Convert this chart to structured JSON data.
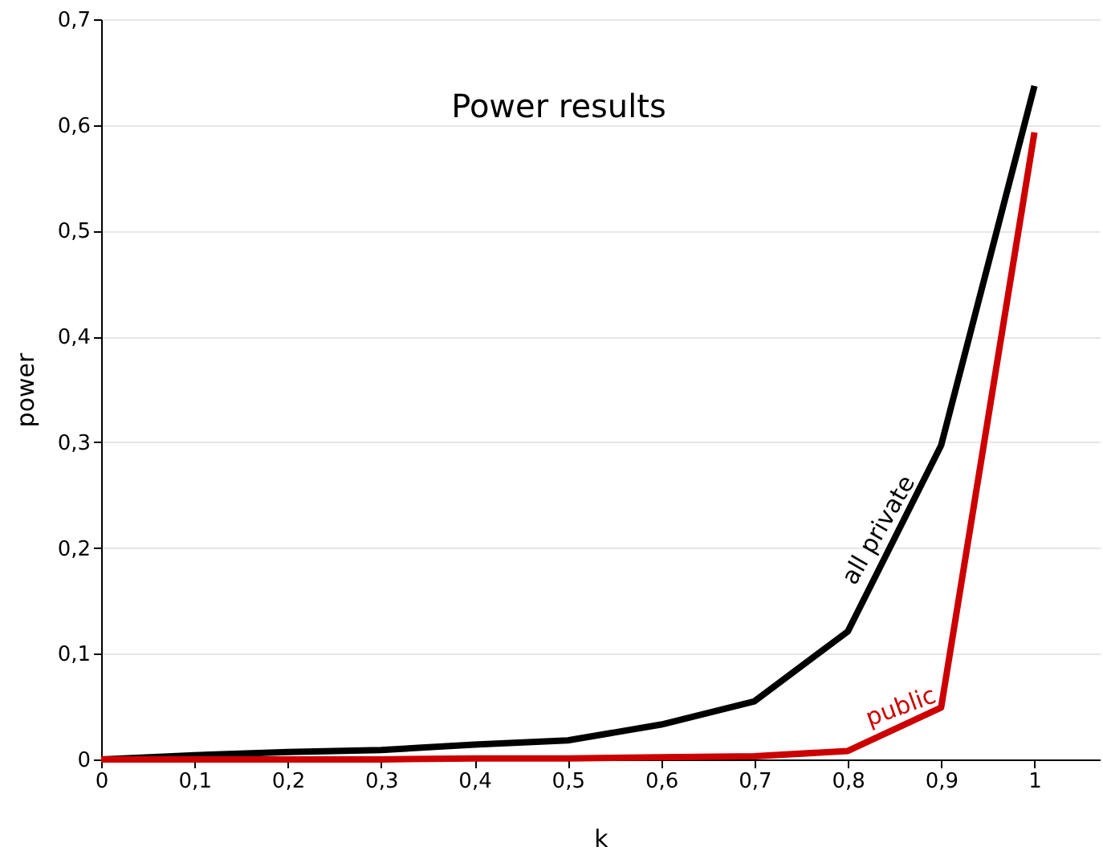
{
  "chart_data": {
    "type": "line",
    "title": "Power results",
    "xlabel": "k",
    "ylabel": "power",
    "x": [
      0,
      0.1,
      0.2,
      0.3,
      0.4,
      0.5,
      0.6,
      0.7,
      0.8,
      0.9,
      1
    ],
    "series": [
      {
        "color": "#000000",
        "values": [
          0,
          0.004,
          0.007,
          0.009,
          0.014,
          0.018,
          0.033,
          0.055,
          0.121,
          0.297,
          0.637
        ]
      },
      {
        "color": "#cc0000",
        "values": [
          0,
          0,
          0,
          0,
          0.001,
          0.001,
          0.002,
          0.003,
          0.008,
          0.049,
          0.593
        ]
      }
    ],
    "annotations": [
      "all private",
      "public"
    ],
    "xlim": [
      0,
      1.07
    ],
    "ylim": [
      0,
      0.7
    ],
    "xticks": [
      0,
      {
        "value": 0.1,
        "label": "0,1"
      },
      {
        "value": 0.2,
        "label": "0,2"
      },
      {
        "value": 0.3,
        "label": "0,3"
      },
      {
        "value": 0.4,
        "label": "0,4"
      },
      {
        "value": 0.5,
        "label": "0,5"
      },
      {
        "value": 0.6,
        "label": "0,6"
      },
      {
        "value": 0.7,
        "label": "0,7"
      },
      {
        "value": 0.8,
        "label": "0,8"
      },
      {
        "value": 0.9,
        "label": "0,9"
      },
      1
    ],
    "yticks": [
      0,
      {
        "value": 0.1,
        "label": "0,1"
      },
      {
        "value": 0.2,
        "label": "0,2"
      },
      {
        "value": 0.3,
        "label": "0,3"
      },
      {
        "value": 0.4,
        "label": "0,4"
      },
      {
        "value": 0.5,
        "label": "0,5"
      },
      {
        "value": 0.6,
        "label": "0,6"
      },
      {
        "value": 0.7,
        "label": "0,7"
      }
    ],
    "grid": "y",
    "marker": "none",
    "line_style": "solid"
  }
}
